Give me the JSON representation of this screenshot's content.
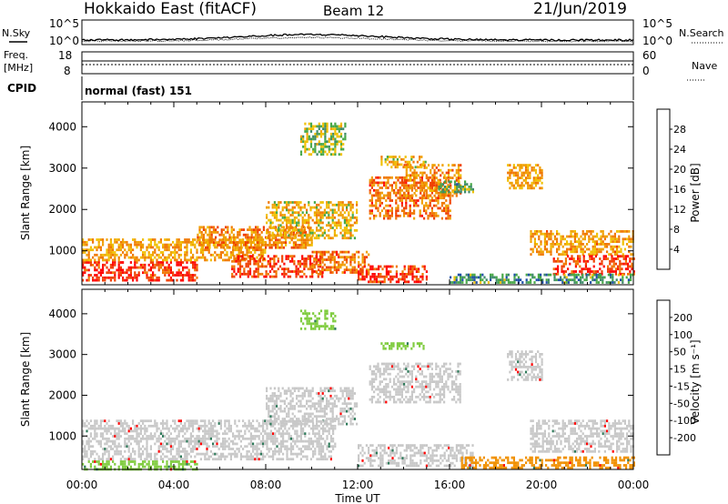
{
  "header": {
    "station": "Hokkaido East (fitACF)",
    "beam": "Beam 12",
    "date": "21/Jun/2019"
  },
  "top_panels": {
    "nsky_label": "N.Sky",
    "nsky_tick_top": "10^5",
    "nsky_tick_bottom": "10^0",
    "nsearch_label": "N.Search",
    "nsearch_tick_top": "10^5",
    "nsearch_tick_bottom": "10^0",
    "freq_label_1": "Freq.",
    "freq_label_2": "[MHz]",
    "freq_tick_top": "18",
    "freq_tick_bottom": "8",
    "nave_label": "Nave",
    "nave_tick_top": "60",
    "nave_tick_bottom": "0",
    "cpid_label": "CPID",
    "cpid_value": "normal (fast) 151"
  },
  "colors": {
    "power_scale": [
      "#0000ff",
      "#1f4fa8",
      "#3f8a6a",
      "#48a848",
      "#f0c000",
      "#f0a000",
      "#f07800",
      "#f04000",
      "#ff0000"
    ],
    "velocity_scale": [
      "#1a1acc",
      "#2a4aa8",
      "#2e7a5a",
      "#3fa040",
      "#80cc40",
      "#c8c8c8",
      "#f0c000",
      "#f09000",
      "#f05000",
      "#ff0000"
    ]
  },
  "chart_data": [
    {
      "type": "heatmap",
      "name": "power",
      "ylabel": "Slant Range [km]",
      "xlabel": "",
      "x_ticks": [
        "00:00",
        "04:00",
        "08:00",
        "12:00",
        "16:00",
        "20:00",
        "00:00"
      ],
      "y_ticks": [
        1000,
        2000,
        3000,
        4000
      ],
      "xlim_hours": [
        0,
        24
      ],
      "ylim_km": [
        180,
        4600
      ],
      "colorbar_label": "Power [dB]",
      "colorbar_ticks": [
        "28",
        "24",
        "20",
        "16",
        "12",
        "8",
        "4"
      ],
      "colorbar_range": [
        0,
        32
      ],
      "regions": [
        {
          "t0": 0.0,
          "t1": 5.0,
          "r0": 300,
          "r1": 750,
          "v": 28
        },
        {
          "t0": 0.0,
          "t1": 8.0,
          "r0": 800,
          "r1": 1300,
          "v": 20
        },
        {
          "t0": 5.0,
          "t1": 10.0,
          "r0": 1100,
          "r1": 1600,
          "v": 22
        },
        {
          "t0": 6.5,
          "t1": 10.5,
          "r0": 400,
          "r1": 900,
          "v": 27
        },
        {
          "t0": 10.0,
          "t1": 12.5,
          "r0": 500,
          "r1": 1000,
          "v": 24
        },
        {
          "t0": 12.0,
          "t1": 15.0,
          "r0": 250,
          "r1": 650,
          "v": 28
        },
        {
          "t0": 8.0,
          "t1": 12.0,
          "r0": 1300,
          "r1": 2200,
          "v": 18
        },
        {
          "t0": 12.5,
          "t1": 16.0,
          "r0": 1800,
          "r1": 2800,
          "v": 24
        },
        {
          "t0": 14.0,
          "t1": 16.5,
          "r0": 2300,
          "r1": 3100,
          "v": 22
        },
        {
          "t0": 13.0,
          "t1": 15.0,
          "r0": 3050,
          "r1": 3300,
          "v": 18
        },
        {
          "t0": 15.5,
          "t1": 17.0,
          "r0": 2400,
          "r1": 2700,
          "v": 12
        },
        {
          "t0": 18.5,
          "t1": 20.0,
          "r0": 2500,
          "r1": 3100,
          "v": 20
        },
        {
          "t0": 19.5,
          "t1": 24.0,
          "r0": 900,
          "r1": 1500,
          "v": 20
        },
        {
          "t0": 20.5,
          "t1": 24.0,
          "r0": 450,
          "r1": 900,
          "v": 28
        },
        {
          "t0": 16.0,
          "t1": 24.0,
          "r0": 250,
          "r1": 450,
          "v": 10
        },
        {
          "t0": 9.5,
          "t1": 11.5,
          "r0": 3300,
          "r1": 4100,
          "v": 14
        }
      ]
    },
    {
      "type": "heatmap",
      "name": "velocity",
      "ylabel": "Slant Range [km]",
      "xlabel": "Time UT",
      "x_ticks": [
        "00:00",
        "04:00",
        "08:00",
        "12:00",
        "16:00",
        "20:00",
        "00:00"
      ],
      "y_ticks": [
        1000,
        2000,
        3000,
        4000
      ],
      "xlim_hours": [
        0,
        24
      ],
      "ylim_km": [
        180,
        4600
      ],
      "colorbar_label": "Velocity [m s⁻¹]",
      "colorbar_ticks": [
        "200",
        "100",
        "50",
        "15",
        "-15",
        "-50",
        "-100",
        "-200"
      ],
      "regions": [
        {
          "t0": 0.0,
          "t1": 11.0,
          "r0": 400,
          "r1": 1400,
          "v": 0
        },
        {
          "t0": 8.0,
          "t1": 12.0,
          "r0": 1300,
          "r1": 2200,
          "v": 0
        },
        {
          "t0": 12.5,
          "t1": 16.5,
          "r0": 1800,
          "r1": 2800,
          "v": 0
        },
        {
          "t0": 12.0,
          "t1": 17.0,
          "r0": 250,
          "r1": 800,
          "v": 0
        },
        {
          "t0": 0.0,
          "t1": 5.0,
          "r0": 200,
          "r1": 400,
          "v": 40
        },
        {
          "t0": 13.0,
          "t1": 15.0,
          "r0": 3150,
          "r1": 3300,
          "v": 40
        },
        {
          "t0": 9.5,
          "t1": 11.0,
          "r0": 3600,
          "r1": 4100,
          "v": 40
        },
        {
          "t0": 16.5,
          "t1": 24.0,
          "r0": 200,
          "r1": 500,
          "v": -30
        },
        {
          "t0": 19.5,
          "t1": 24.0,
          "r0": 600,
          "r1": 1400,
          "v": 0
        },
        {
          "t0": 18.5,
          "t1": 20.0,
          "r0": 2400,
          "r1": 3100,
          "v": 0
        }
      ]
    }
  ]
}
